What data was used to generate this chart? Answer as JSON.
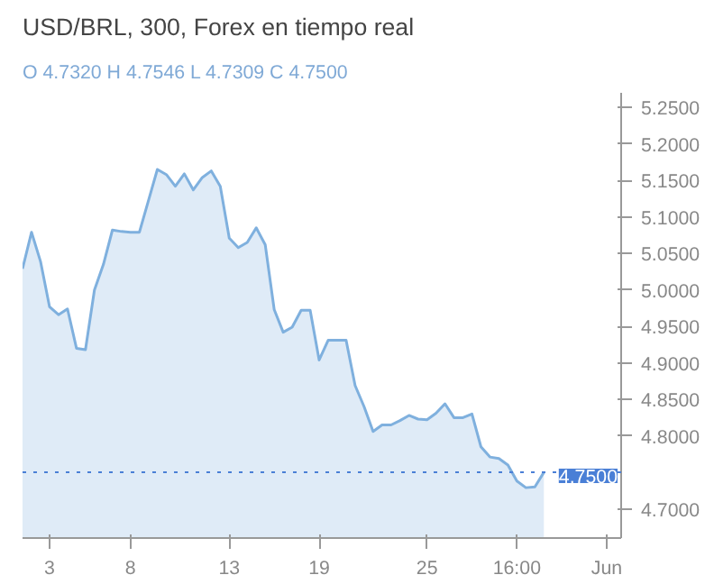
{
  "chart_data": {
    "type": "area",
    "title": "USD/BRL, 300, Forex en tiempo real",
    "subtitle": "O 4.7320 H 4.7546 L 4.7309 C 4.7500",
    "categories": [
      null,
      null,
      null,
      "3",
      null,
      null,
      null,
      null,
      null,
      null,
      null,
      null,
      "8",
      null,
      null,
      null,
      null,
      null,
      null,
      null,
      null,
      null,
      null,
      "13",
      null,
      null,
      null,
      null,
      null,
      null,
      null,
      null,
      null,
      "19",
      null,
      null,
      null,
      null,
      null,
      null,
      null,
      null,
      null,
      null,
      null,
      "25",
      null,
      null,
      null,
      null,
      null,
      null,
      null,
      null,
      null,
      "16:00",
      null,
      null,
      null,
      null,
      null,
      null,
      null,
      null,
      null,
      "Jun",
      null
    ],
    "values": [
      5.029,
      5.079,
      5.039,
      4.977,
      4.966,
      4.974,
      4.92,
      4.918,
      5.0,
      5.035,
      5.082,
      5.08,
      5.079,
      5.079,
      5.122,
      5.165,
      5.158,
      5.142,
      5.159,
      5.137,
      5.154,
      5.163,
      5.142,
      5.071,
      5.058,
      5.065,
      5.085,
      5.062,
      4.973,
      4.942,
      4.949,
      4.972,
      4.972,
      4.904,
      4.931,
      4.931,
      4.931,
      4.869,
      4.84,
      4.806,
      4.815,
      4.815,
      4.821,
      4.828,
      4.823,
      4.822,
      4.831,
      4.844,
      4.825,
      4.825,
      4.83,
      4.785,
      4.771,
      4.769,
      4.76,
      4.738,
      4.729,
      4.73,
      4.75,
      null,
      null,
      null,
      null,
      null,
      null,
      null,
      null
    ],
    "color": "#7fb0de",
    "ylim": [
      4.66,
      5.27
    ],
    "yticks": [
      {
        "value": 4.7,
        "label": "4.7000"
      },
      {
        "value": 4.8,
        "label": "4.8000"
      },
      {
        "value": 4.85,
        "label": "4.8500"
      },
      {
        "value": 4.9,
        "label": "4.9000"
      },
      {
        "value": 4.95,
        "label": "4.9500"
      },
      {
        "value": 5.0,
        "label": "5.0000"
      },
      {
        "value": 5.05,
        "label": "5.0500"
      },
      {
        "value": 5.1,
        "label": "5.1000"
      },
      {
        "value": 5.15,
        "label": "5.1500"
      },
      {
        "value": 5.2,
        "label": "5.2000"
      },
      {
        "value": 5.25,
        "label": "5.2500"
      }
    ],
    "ref_lines": [
      {
        "axis": "y",
        "value": 4.75,
        "label": "4.7500",
        "color": "#4a7fd6",
        "line_style": "dotted"
      }
    ],
    "grid": false
  }
}
